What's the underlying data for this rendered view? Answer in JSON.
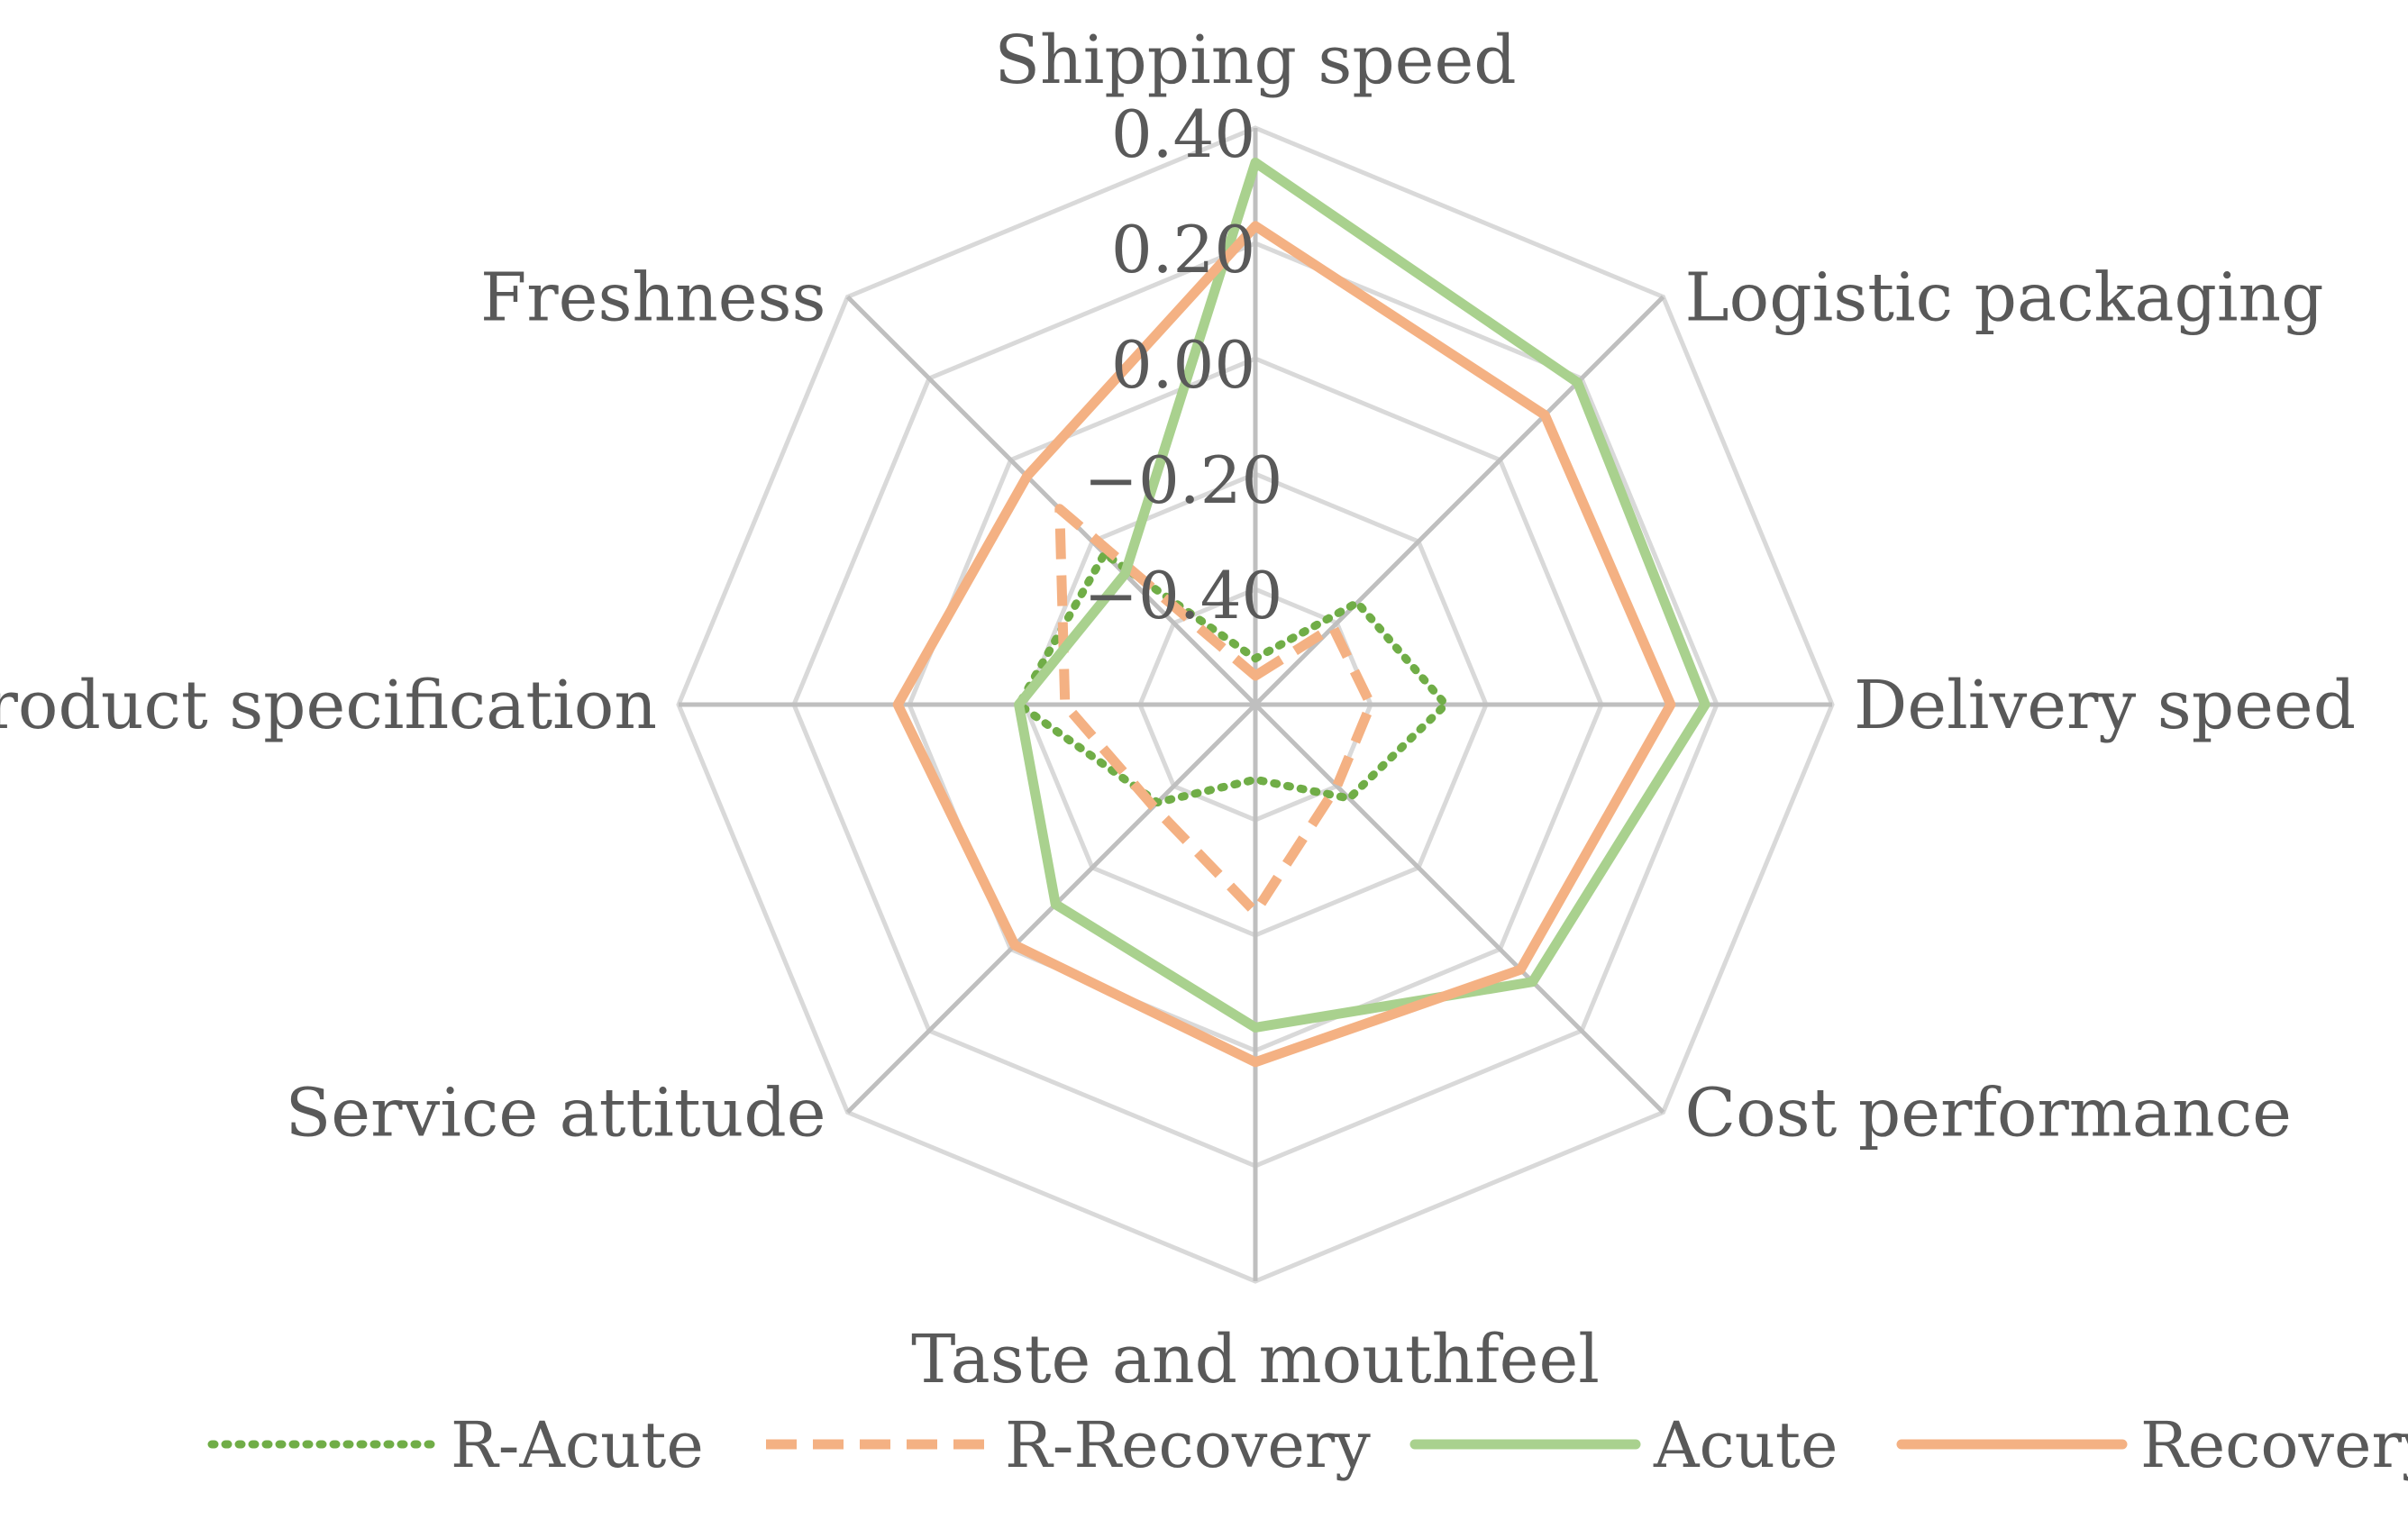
{
  "chart_data": {
    "type": "radar",
    "title": "",
    "categories": [
      "Shipping speed",
      "Logistic packaging",
      "Delivery speed",
      "Cost performance",
      "Taste and mouthfeel",
      "Service attitude",
      "Product specification",
      "Freshness"
    ],
    "rlim": [
      -0.6,
      0.4
    ],
    "ticks": [
      0.4,
      0.2,
      0.0,
      -0.2,
      -0.4
    ],
    "tick_labels": [
      "0.40",
      "0.20",
      "0.00",
      "−0.20",
      "−0.40"
    ],
    "grid": true,
    "legend_position": "bottom",
    "series": [
      {
        "name": "R-Acute",
        "values": [
          -0.52,
          -0.35,
          -0.27,
          -0.37,
          -0.47,
          -0.36,
          -0.19,
          -0.23
        ]
      },
      {
        "name": "R-Recovery",
        "values": [
          -0.55,
          -0.41,
          -0.4,
          -0.4,
          -0.24,
          -0.35,
          -0.27,
          -0.12
        ]
      },
      {
        "name": "Acute",
        "values": [
          0.34,
          0.19,
          0.18,
          0.08,
          -0.04,
          -0.11,
          -0.19,
          -0.28
        ]
      },
      {
        "name": "Recovery",
        "values": [
          0.23,
          0.11,
          0.12,
          0.05,
          0.02,
          -0.01,
          0.02,
          -0.04
        ]
      }
    ]
  },
  "style": {
    "grid_color": "#d9d9d9",
    "spoke_color": "#bfbfbf",
    "text_color": "#595959",
    "series_colors": [
      "#70ad47",
      "#f4b183",
      "#a9d18e",
      "#f4b183"
    ],
    "series_dash": [
      "dotted",
      "dashed",
      "solid",
      "solid"
    ]
  }
}
